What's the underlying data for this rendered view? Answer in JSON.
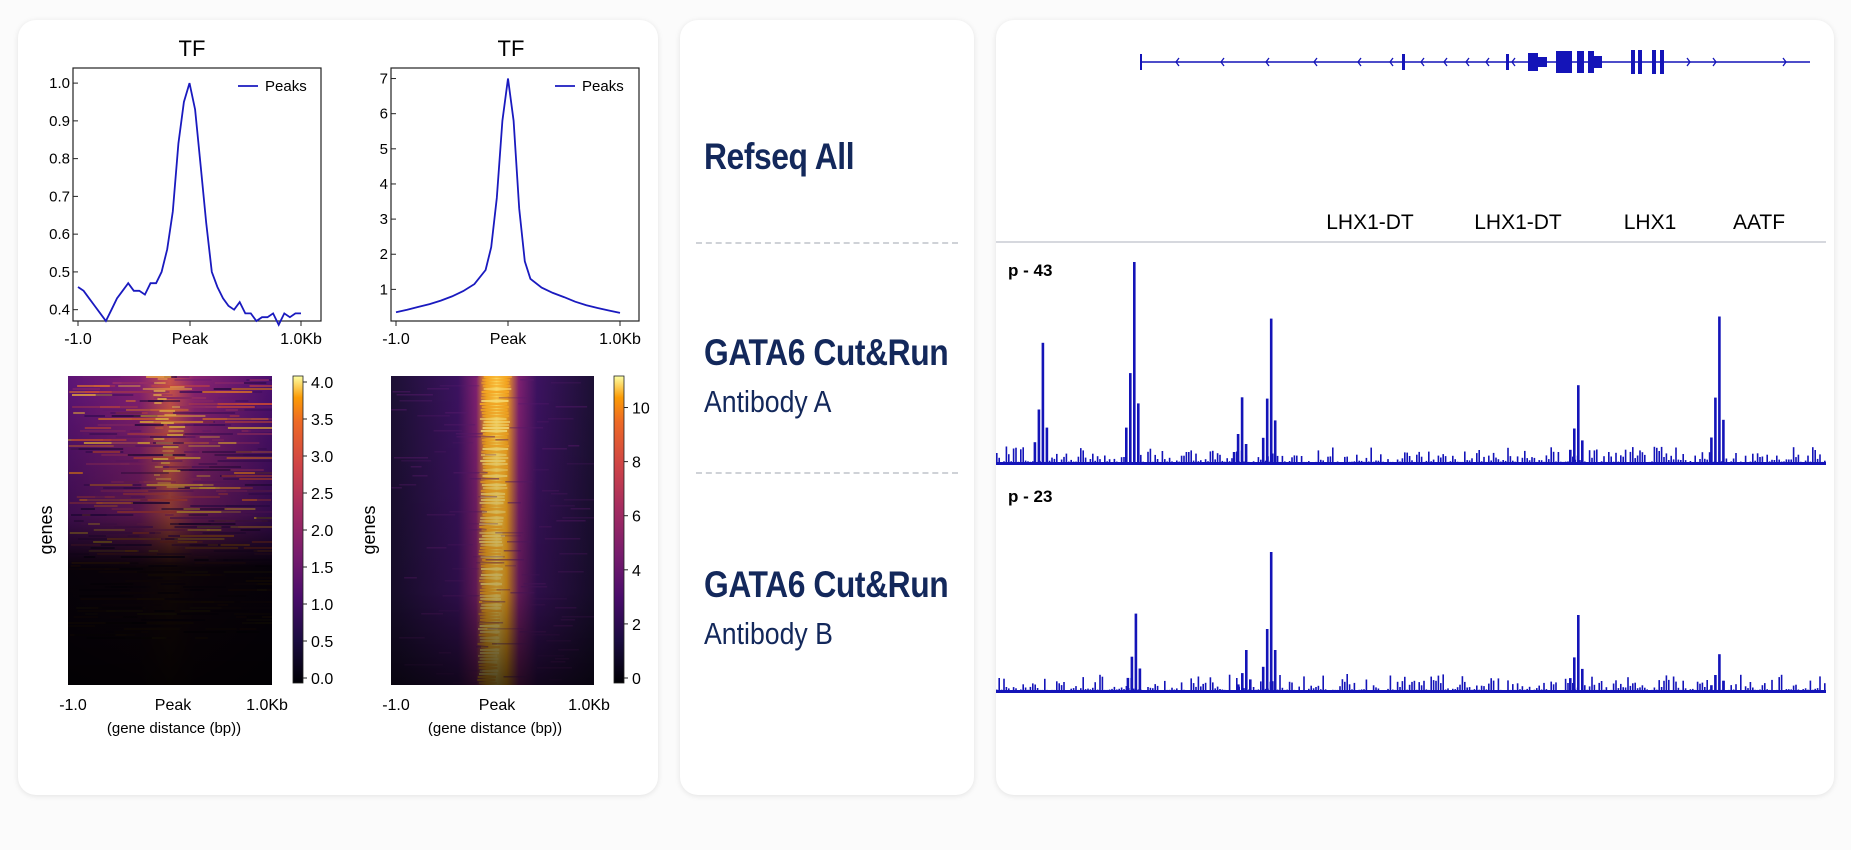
{
  "chart_data": [
    {
      "type": "line",
      "title": "TF",
      "legend": "Peaks",
      "legend_position": "top-right",
      "x_tick_labels": [
        "-1.0",
        "Peak",
        "1.0Kb"
      ],
      "y_ticks": [
        0.4,
        0.5,
        0.6,
        0.7,
        0.8,
        0.9,
        1.0
      ],
      "ylim": [
        0.37,
        1.04
      ],
      "series": [
        {
          "name": "Peaks",
          "x": [
            -1.0,
            -0.95,
            -0.9,
            -0.85,
            -0.8,
            -0.75,
            -0.7,
            -0.65,
            -0.6,
            -0.55,
            -0.5,
            -0.45,
            -0.4,
            -0.35,
            -0.3,
            -0.25,
            -0.2,
            -0.15,
            -0.1,
            -0.05,
            0.0,
            0.05,
            0.1,
            0.15,
            0.2,
            0.25,
            0.3,
            0.35,
            0.4,
            0.45,
            0.5,
            0.55,
            0.6,
            0.65,
            0.7,
            0.75,
            0.8,
            0.85,
            0.9,
            0.95,
            1.0
          ],
          "y": [
            0.46,
            0.45,
            0.43,
            0.41,
            0.39,
            0.37,
            0.4,
            0.43,
            0.45,
            0.47,
            0.45,
            0.45,
            0.44,
            0.47,
            0.47,
            0.5,
            0.56,
            0.66,
            0.84,
            0.95,
            1.0,
            0.93,
            0.78,
            0.63,
            0.5,
            0.46,
            0.43,
            0.41,
            0.4,
            0.42,
            0.39,
            0.39,
            0.37,
            0.38,
            0.38,
            0.39,
            0.36,
            0.39,
            0.38,
            0.39,
            0.39
          ]
        }
      ]
    },
    {
      "type": "line",
      "title": "TF",
      "legend": "Peaks",
      "legend_position": "top-right",
      "x_tick_labels": [
        "-1.0",
        "Peak",
        "1.0Kb"
      ],
      "y_ticks": [
        1,
        2,
        3,
        4,
        5,
        6,
        7
      ],
      "ylim": [
        0.1,
        7.3
      ],
      "series": [
        {
          "name": "Peaks",
          "x": [
            -1.0,
            -0.9,
            -0.8,
            -0.7,
            -0.6,
            -0.5,
            -0.4,
            -0.3,
            -0.2,
            -0.15,
            -0.1,
            -0.05,
            0.0,
            0.05,
            0.1,
            0.15,
            0.2,
            0.3,
            0.4,
            0.5,
            0.6,
            0.7,
            0.8,
            0.9,
            1.0
          ],
          "y": [
            0.35,
            0.42,
            0.5,
            0.58,
            0.68,
            0.8,
            0.95,
            1.15,
            1.55,
            2.2,
            3.6,
            5.8,
            7.0,
            5.8,
            3.3,
            1.8,
            1.3,
            1.05,
            0.9,
            0.78,
            0.65,
            0.55,
            0.47,
            0.4,
            0.33
          ]
        }
      ]
    },
    {
      "type": "heatmap",
      "ylabel": "genes",
      "xlabel": "(gene distance (bp))",
      "x_tick_labels": [
        "-1.0",
        "Peak",
        "1.0Kb"
      ],
      "colorbar_ticks": [
        "0.0",
        "0.5",
        "1.0",
        "1.5",
        "2.0",
        "2.5",
        "3.0",
        "3.5",
        "4.0"
      ],
      "colorbar_range": [
        0,
        4.0
      ]
    },
    {
      "type": "heatmap",
      "ylabel": "genes",
      "xlabel": "(gene distance (bp))",
      "x_tick_labels": [
        "-1.0",
        "Peak",
        "1.0Kb"
      ],
      "colorbar_ticks": [
        "0",
        "2",
        "4",
        "6",
        "8",
        "10"
      ],
      "colorbar_range": [
        0,
        10.5
      ]
    }
  ],
  "track_labels": [
    {
      "title": "Refseq All",
      "subtitle": ""
    },
    {
      "title": "GATA6 Cut&Run",
      "subtitle": "Antibody A"
    },
    {
      "title": "GATA6 Cut&Run",
      "subtitle": "Antibody B"
    }
  ],
  "browser": {
    "genes": [
      "LHX1-DT",
      "LHX1-DT",
      "LHX1",
      "AATF"
    ],
    "tracks": [
      {
        "scale": "p - 43",
        "peaks": [
          [
            0.055,
            0.6
          ],
          [
            0.165,
            1.0
          ],
          [
            0.295,
            0.33
          ],
          [
            0.33,
            0.72
          ],
          [
            0.7,
            0.39
          ],
          [
            0.87,
            0.73
          ]
        ]
      },
      {
        "scale": "p - 23",
        "peaks": [
          [
            0.167,
            0.56
          ],
          [
            0.3,
            0.3
          ],
          [
            0.33,
            1.0
          ],
          [
            0.7,
            0.55
          ],
          [
            0.87,
            0.27
          ]
        ]
      }
    ],
    "colors": {
      "signal": "#1414b8",
      "label": "#13285b",
      "heat_low": "#000004",
      "heat_high": "#fcffa4"
    }
  }
}
